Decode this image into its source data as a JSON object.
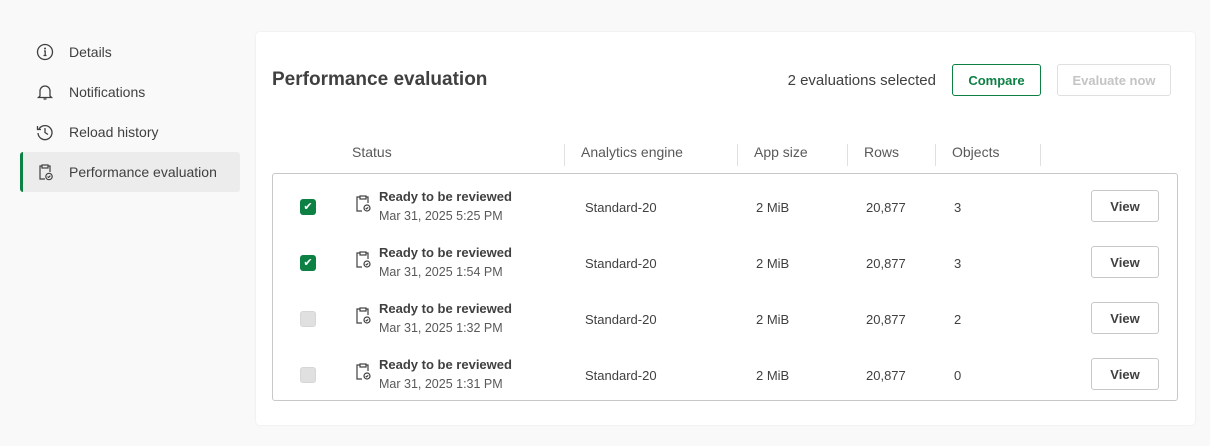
{
  "sidebar": {
    "items": [
      {
        "label": "Details",
        "icon": "info-icon"
      },
      {
        "label": "Notifications",
        "icon": "bell-icon"
      },
      {
        "label": "Reload history",
        "icon": "history-icon"
      },
      {
        "label": "Performance evaluation",
        "icon": "clipboard-check-icon",
        "active": true
      }
    ]
  },
  "header": {
    "title": "Performance evaluation",
    "selected_text": "2 evaluations selected",
    "compare_label": "Compare",
    "evaluate_label": "Evaluate now"
  },
  "table": {
    "columns": [
      "Status",
      "Analytics engine",
      "App size",
      "Rows",
      "Objects"
    ],
    "rows": [
      {
        "checked": true,
        "status": "Ready to be reviewed",
        "date": "Mar 31, 2025 5:25 PM",
        "engine": "Standard-20",
        "size": "2 MiB",
        "rows": "20,877",
        "objects": "3",
        "action": "View"
      },
      {
        "checked": true,
        "status": "Ready to be reviewed",
        "date": "Mar 31, 2025 1:54 PM",
        "engine": "Standard-20",
        "size": "2 MiB",
        "rows": "20,877",
        "objects": "3",
        "action": "View"
      },
      {
        "checked": false,
        "status": "Ready to be reviewed",
        "date": "Mar 31, 2025 1:32 PM",
        "engine": "Standard-20",
        "size": "2 MiB",
        "rows": "20,877",
        "objects": "2",
        "action": "View"
      },
      {
        "checked": false,
        "status": "Ready to be reviewed",
        "date": "Mar 31, 2025 1:31 PM",
        "engine": "Standard-20",
        "size": "2 MiB",
        "rows": "20,877",
        "objects": "0",
        "action": "View"
      }
    ]
  },
  "colors": {
    "accent": "#0d8044"
  }
}
